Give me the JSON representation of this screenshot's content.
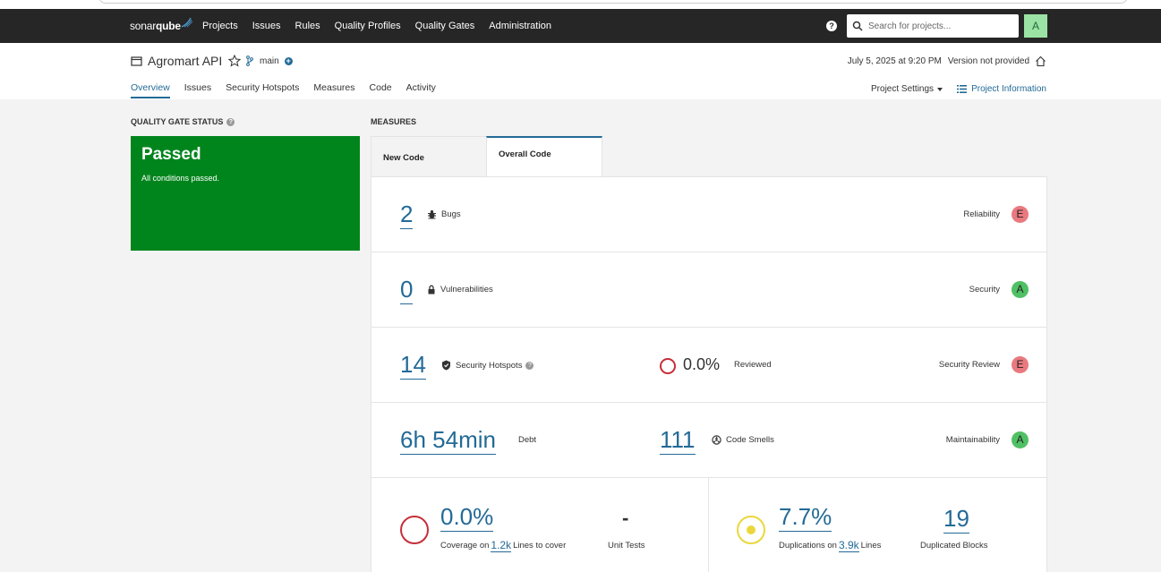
{
  "nav": {
    "logo_light": "sonar",
    "logo_bold": "qube",
    "links": [
      "Projects",
      "Issues",
      "Rules",
      "Quality Profiles",
      "Quality Gates",
      "Administration"
    ],
    "help": "?",
    "search_placeholder": "Search for projects...",
    "avatar_letter": "A"
  },
  "project": {
    "name": "Agromart API",
    "branch": "main",
    "branch_add": "+",
    "date": "July 5, 2025 at 9:20 PM",
    "version": "Version not provided",
    "tabs": [
      "Overview",
      "Issues",
      "Security Hotspots",
      "Measures",
      "Code",
      "Activity"
    ],
    "active_tab": "Overview",
    "settings_label": "Project Settings",
    "info_label": "Project Information"
  },
  "quality_gate": {
    "title": "QUALITY GATE STATUS",
    "status": "Passed",
    "message": "All conditions passed.",
    "color": "#00851d"
  },
  "measures": {
    "title": "MEASURES",
    "tabs": [
      "New Code",
      "Overall Code"
    ],
    "active_tab": "Overall Code",
    "bugs": {
      "value": "2",
      "label": "Bugs",
      "rating_label": "Reliability",
      "rating": "E"
    },
    "vulnerabilities": {
      "value": "0",
      "label": "Vulnerabilities",
      "rating_label": "Security",
      "rating": "A"
    },
    "hotspots": {
      "value": "14",
      "label": "Security Hotspots",
      "reviewed_value": "0.0%",
      "reviewed_label": "Reviewed",
      "rating_label": "Security Review",
      "rating": "E"
    },
    "maintainability": {
      "debt_value": "6h 54min",
      "debt_label": "Debt",
      "smells_value": "111",
      "smells_label": "Code Smells",
      "rating_label": "Maintainability",
      "rating": "A"
    },
    "coverage": {
      "value": "0.0%",
      "label_prefix": "Coverage on",
      "lines": "1.2k",
      "label_suffix": "Lines to cover",
      "unit_tests_value": "-",
      "unit_tests_label": "Unit Tests"
    },
    "duplications": {
      "value": "7.7%",
      "label_prefix": "Duplications on",
      "lines": "3.9k",
      "label_suffix": "Lines",
      "blocks_value": "19",
      "blocks_label": "Duplicated Blocks"
    }
  },
  "colors": {
    "accent": "#236a97",
    "grade_e": "#e9797f",
    "grade_a": "#4fc064",
    "coverage_ring": "#c72e39",
    "dup_ring": "#ebd73c"
  }
}
